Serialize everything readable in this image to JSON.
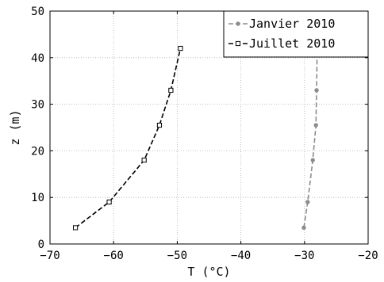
{
  "chart_data": {
    "type": "line",
    "xlabel": "T (°C)",
    "ylabel": "z (m)",
    "xlim": [
      -70,
      -20
    ],
    "ylim": [
      0,
      50
    ],
    "xticks": [
      -70,
      -60,
      -50,
      -40,
      -30,
      -20
    ],
    "yticks": [
      0,
      10,
      20,
      30,
      40,
      50
    ],
    "grid": true,
    "legend_position": "top-right",
    "series": [
      {
        "name": "Janvier 2010",
        "color": "#8c8c8c",
        "marker": "circle",
        "line_style": "dashed",
        "x": [
          -30.1,
          -29.5,
          -28.7,
          -28.2,
          -28.1,
          -28.0
        ],
        "y": [
          3.5,
          9.0,
          18.0,
          25.5,
          33.0,
          42.0
        ]
      },
      {
        "name": "Juillet 2010",
        "color": "#000000",
        "marker": "square",
        "line_style": "dashed",
        "x": [
          -66.0,
          -60.7,
          -55.2,
          -52.8,
          -51.0,
          -49.5
        ],
        "y": [
          3.5,
          9.0,
          18.0,
          25.5,
          33.0,
          42.0
        ]
      }
    ]
  }
}
